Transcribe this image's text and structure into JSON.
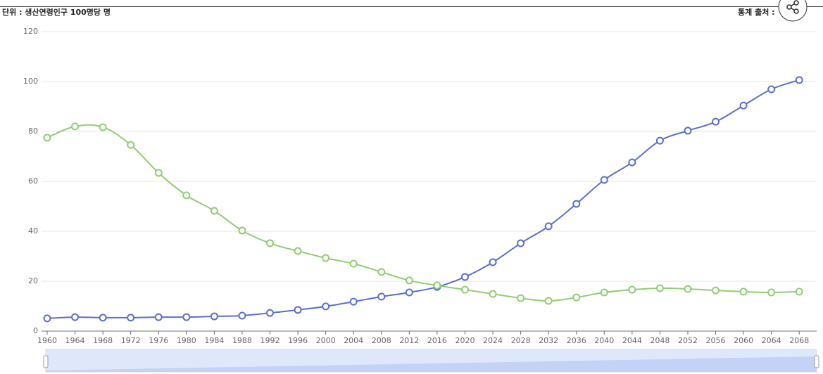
{
  "unit_label": "단위 : 생산연령인구 100명당 명",
  "source_label": "통계 출처 :",
  "chart_data": {
    "type": "line",
    "x": [
      1960,
      1964,
      1968,
      1972,
      1976,
      1980,
      1984,
      1988,
      1992,
      1996,
      2000,
      2004,
      2008,
      2012,
      2016,
      2020,
      2024,
      2028,
      2032,
      2036,
      2040,
      2044,
      2048,
      2052,
      2056,
      2060,
      2064,
      2068
    ],
    "series": [
      {
        "color": "#5b6fc9",
        "values": [
          5.1,
          5.6,
          5.4,
          5.4,
          5.6,
          5.6,
          5.9,
          6.2,
          7.3,
          8.5,
          9.9,
          11.8,
          13.8,
          15.5,
          17.7,
          21.7,
          27.6,
          35.2,
          42.0,
          51.0,
          60.6,
          67.6,
          76.3,
          80.3,
          83.9,
          90.4,
          96.9,
          100.6
        ]
      },
      {
        "color": "#91cc75",
        "values": [
          77.5,
          82.0,
          81.7,
          74.6,
          63.4,
          54.4,
          48.2,
          40.3,
          35.2,
          32.1,
          29.3,
          27.0,
          23.7,
          20.3,
          18.3,
          16.6,
          14.9,
          13.2,
          12.1,
          13.5,
          15.5,
          16.6,
          17.2,
          16.9,
          16.3,
          15.8,
          15.5,
          15.8
        ]
      }
    ],
    "xlim": [
      1960,
      2070
    ],
    "xticks": [
      1960,
      1964,
      1968,
      1972,
      1976,
      1980,
      1984,
      1988,
      1992,
      1996,
      2000,
      2004,
      2008,
      2012,
      2016,
      2020,
      2024,
      2028,
      2032,
      2036,
      2040,
      2044,
      2048,
      2052,
      2056,
      2060,
      2064,
      2068
    ],
    "ylim": [
      0,
      120
    ],
    "yticks": [
      0,
      20,
      40,
      60,
      80,
      100,
      120
    ],
    "grid": true
  }
}
